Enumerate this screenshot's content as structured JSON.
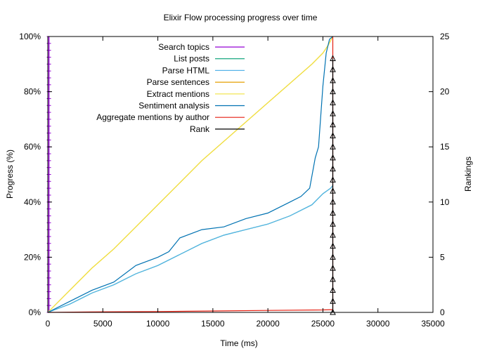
{
  "chart_data": {
    "type": "line",
    "title": "Elixir Flow processing progress over time",
    "xlabel": "Time (ms)",
    "ylabel": "Progress (%)",
    "y2label": "Rankings",
    "xlim": [
      0,
      35000
    ],
    "ylim": [
      0,
      100
    ],
    "y2lim": [
      0,
      25
    ],
    "xticks": [
      "0",
      "5000",
      "10000",
      "15000",
      "20000",
      "25000",
      "30000",
      "35000"
    ],
    "xtick_values": [
      0,
      5000,
      10000,
      15000,
      20000,
      25000,
      30000,
      35000
    ],
    "yticks": [
      "0%",
      "20%",
      "40%",
      "60%",
      "80%",
      "100%"
    ],
    "ytick_values": [
      0,
      20,
      40,
      60,
      80,
      100
    ],
    "y2ticks": [
      "0",
      "5",
      "10",
      "15",
      "20",
      "25"
    ],
    "y2tick_values": [
      0,
      5,
      10,
      15,
      20,
      25
    ],
    "grid": false,
    "legend_position": "top-center",
    "series": [
      {
        "name": "Search topics",
        "color": "#9400d3",
        "style": "vertical-ticks",
        "x": [
          100,
          150,
          200
        ],
        "y": [
          0,
          100,
          100
        ]
      },
      {
        "name": "List posts",
        "color": "#009e73",
        "x": [
          0,
          2000,
          4000,
          6000,
          8000,
          10000,
          12000,
          14000,
          16000,
          18000,
          20000,
          22000,
          24000,
          25000,
          25700,
          25900
        ],
        "y": [
          0,
          3,
          7,
          10,
          14,
          17,
          21,
          25,
          28,
          30,
          32,
          35,
          39,
          43,
          45,
          46
        ]
      },
      {
        "name": "Parse HTML",
        "color": "#56b4e9",
        "x": [
          0,
          2000,
          4000,
          6000,
          8000,
          10000,
          12000,
          14000,
          16000,
          18000,
          20000,
          22000,
          24000,
          25000,
          25700,
          25900
        ],
        "y": [
          0,
          3,
          7,
          10,
          14,
          17,
          21,
          25,
          28,
          30,
          32,
          35,
          39,
          43,
          45,
          46
        ]
      },
      {
        "name": "Parse sentences",
        "color": "#e69f00",
        "x": [
          0,
          2000,
          4000,
          6000,
          8000,
          10000,
          12000,
          14000,
          16000,
          18000,
          20000,
          22000,
          24000,
          25000,
          25500,
          25900
        ],
        "y": [
          0,
          8,
          16,
          23,
          31,
          39,
          47,
          55,
          62,
          69,
          76,
          83,
          90,
          94,
          97,
          100
        ]
      },
      {
        "name": "Extract mentions",
        "color": "#f0e442",
        "x": [
          0,
          2000,
          4000,
          6000,
          8000,
          10000,
          12000,
          14000,
          16000,
          18000,
          20000,
          22000,
          24000,
          25000,
          25500,
          25900
        ],
        "y": [
          0,
          8,
          16,
          23,
          31,
          39,
          47,
          55,
          62,
          69,
          76,
          83,
          90,
          94,
          97,
          100
        ]
      },
      {
        "name": "Sentiment analysis",
        "color": "#0072b2",
        "x": [
          0,
          2000,
          4000,
          6000,
          8000,
          10000,
          11000,
          12000,
          14000,
          16000,
          18000,
          20000,
          22000,
          23000,
          23800,
          24300,
          24600,
          25000,
          25300,
          25600,
          25900
        ],
        "y": [
          0,
          4,
          8,
          11,
          17,
          20,
          22,
          27,
          30,
          31,
          34,
          36,
          40,
          42,
          45,
          56,
          60,
          82,
          94,
          99,
          100
        ]
      },
      {
        "name": "Aggregate mentions by author",
        "color": "#e51e10",
        "x": [
          0,
          5000,
          10000,
          15000,
          20000,
          25000,
          25800,
          25900,
          25900
        ],
        "y": [
          0,
          0.2,
          0.3,
          0.5,
          0.7,
          0.9,
          1,
          1,
          100
        ]
      },
      {
        "name": "Rank",
        "color": "#000000",
        "axis": "y2",
        "marker": "triangle",
        "x": [
          25900,
          25900,
          25900,
          25900,
          25900,
          25900,
          25900,
          25900,
          25900,
          25900,
          25900,
          25900,
          25900,
          25900,
          25900,
          25900,
          25900,
          25900,
          25900,
          25900,
          25900,
          25900,
          25900,
          25900
        ],
        "y": [
          0,
          1,
          2,
          3,
          4,
          5,
          6,
          7,
          8,
          9,
          10,
          11,
          12,
          13,
          14,
          15,
          16,
          17,
          18,
          19,
          20,
          21,
          22,
          23
        ]
      }
    ]
  }
}
